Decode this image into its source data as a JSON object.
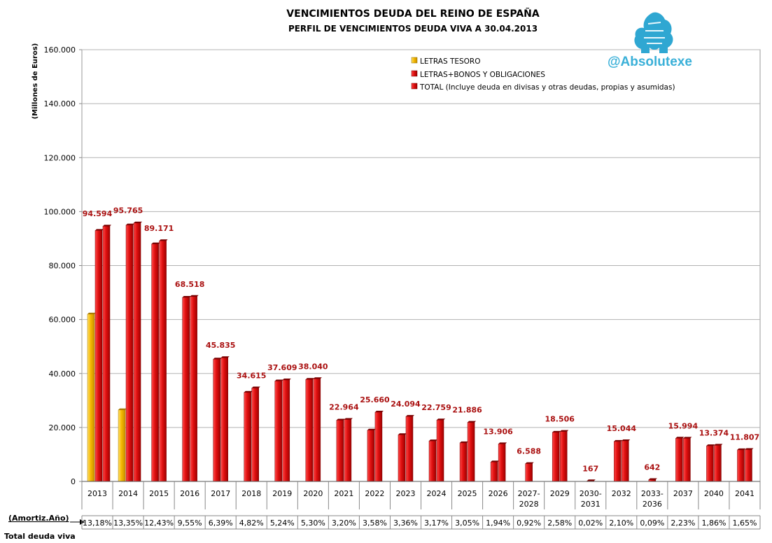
{
  "brand": {
    "handle": "@Absolutexe",
    "logo_icon": "griffin-logo",
    "color": "#3ab0d8"
  },
  "chart_data": {
    "type": "bar",
    "title": "VENCIMIENTOS DEUDA DEL REINO DE ESPAÑA",
    "subtitle": "PERFIL DE VENCIMIENTOS DEUDA VIVA A 30.04.2013",
    "xlabel": "",
    "ylabel": "(Millones de Euros)",
    "ylim": [
      0,
      160000
    ],
    "yticks": [
      0,
      20000,
      40000,
      60000,
      80000,
      100000,
      120000,
      140000,
      160000
    ],
    "ytick_labels": [
      "0",
      "20.000",
      "40.000",
      "60.000",
      "80.000",
      "100.000",
      "120.000",
      "140.000",
      "160.000"
    ],
    "grid": true,
    "legend_position": "top-right",
    "categories": [
      "2013",
      "2014",
      "2015",
      "2016",
      "2017",
      "2018",
      "2019",
      "2020",
      "2021",
      "2022",
      "2023",
      "2024",
      "2025",
      "2026",
      "2027-2028",
      "2029",
      "2030-2031",
      "2032",
      "2033-2036",
      "2037",
      "2040",
      "2041"
    ],
    "series": [
      {
        "name": "LETRAS TESORO",
        "color": "#f5b800",
        "values": [
          62000,
          26500,
          null,
          null,
          null,
          null,
          null,
          null,
          null,
          null,
          null,
          null,
          null,
          null,
          null,
          null,
          null,
          null,
          null,
          null,
          null,
          null
        ]
      },
      {
        "name": "LETRAS+BONOS Y OBLIGACIONES",
        "color": "#dd1111",
        "values": [
          93000,
          95000,
          88000,
          68200,
          45300,
          33000,
          37200,
          37800,
          22700,
          19000,
          17300,
          15000,
          14300,
          7200,
          null,
          18200,
          null,
          14800,
          null,
          16000,
          13200,
          11700
        ]
      },
      {
        "name": "TOTAL (Incluye deuda en divisas y otras deudas, propias y asumidas)",
        "color": "#dd1111",
        "values": [
          94594,
          95765,
          89171,
          68518,
          45835,
          34615,
          37609,
          38040,
          22964,
          25660,
          24094,
          22759,
          21886,
          13906,
          6588,
          18506,
          167,
          15044,
          642,
          15994,
          13374,
          11807
        ]
      }
    ],
    "data_labels": [
      "94.594",
      "95.765",
      "89.171",
      "68.518",
      "45.835",
      "34.615",
      "37.609",
      "38.040",
      "22.964",
      "25.660",
      "24.094",
      "22.759",
      "21.886",
      "13.906",
      "6.588",
      "18.506",
      "167",
      "15.044",
      "642",
      "15.994",
      "13.374",
      "11.807"
    ],
    "footer": {
      "row_label_top": "(Amortiz.Año)",
      "row_label_bottom": "Total deuda viva",
      "percentages": [
        "13,18%",
        "13,35%",
        "12,43%",
        "9,55%",
        "6,39%",
        "4,82%",
        "5,24%",
        "5,30%",
        "3,20%",
        "3,58%",
        "3,36%",
        "3,17%",
        "3,05%",
        "1,94%",
        "0,92%",
        "2,58%",
        "0,02%",
        "2,10%",
        "0,09%",
        "2,23%",
        "1,86%",
        "1,65%"
      ]
    },
    "label_color": "#aa1111"
  }
}
